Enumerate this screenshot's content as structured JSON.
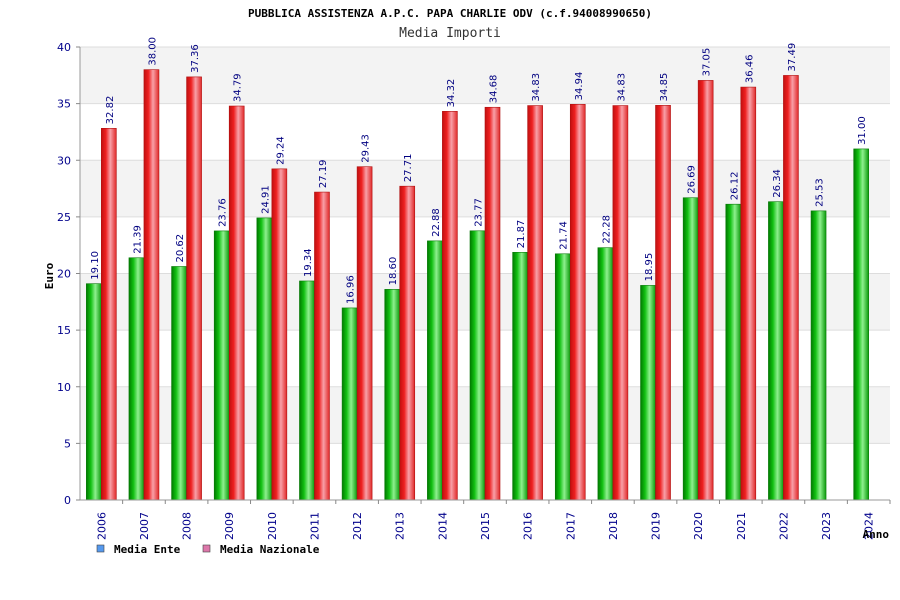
{
  "chart_data": {
    "type": "bar",
    "title": "PUBBLICA ASSISTENZA A.P.C. PAPA CHARLIE ODV (c.f.94008990650)",
    "subtitle": "Media Importi",
    "xlabel": "Anno",
    "ylabel": "Euro",
    "ylim": [
      0,
      40
    ],
    "yticks": [
      "0",
      "5",
      "10",
      "15",
      "20",
      "25",
      "30",
      "35",
      "40"
    ],
    "categories": [
      "2006",
      "2007",
      "2008",
      "2009",
      "2010",
      "2011",
      "2012",
      "2013",
      "2014",
      "2015",
      "2016",
      "2017",
      "2018",
      "2019",
      "2020",
      "2021",
      "2022",
      "2023",
      "2024"
    ],
    "series": [
      {
        "name": "Media Ente",
        "color": "#22bb22",
        "legend_color": "#5599ee",
        "values": [
          19.1,
          21.39,
          20.62,
          23.76,
          24.91,
          19.34,
          16.96,
          18.6,
          22.88,
          23.77,
          21.87,
          21.74,
          22.28,
          18.95,
          26.69,
          26.12,
          26.34,
          25.53,
          31.0
        ],
        "labels": [
          "19.10",
          "21.39",
          "20.62",
          "23.76",
          "24.91",
          "19.34",
          "16.96",
          "18.60",
          "22.88",
          "23.77",
          "21.87",
          "21.74",
          "22.28",
          "18.95",
          "26.69",
          "26.12",
          "26.34",
          "25.53",
          "31.00"
        ]
      },
      {
        "name": "Media Nazionale",
        "color": "#ee2222",
        "legend_color": "#dd77aa",
        "values": [
          32.82,
          38.0,
          37.36,
          34.79,
          29.24,
          27.19,
          29.43,
          27.71,
          34.32,
          34.68,
          34.83,
          34.94,
          34.83,
          34.85,
          37.05,
          36.46,
          37.49,
          null,
          null
        ],
        "labels": [
          "32.82",
          "38.00",
          "37.36",
          "34.79",
          "29.24",
          "27.19",
          "29.43",
          "27.71",
          "34.32",
          "34.68",
          "34.83",
          "34.94",
          "34.83",
          "34.85",
          "37.05",
          "36.46",
          "37.49",
          "",
          ""
        ]
      }
    ],
    "grid": true,
    "legend": "bottom-left"
  }
}
